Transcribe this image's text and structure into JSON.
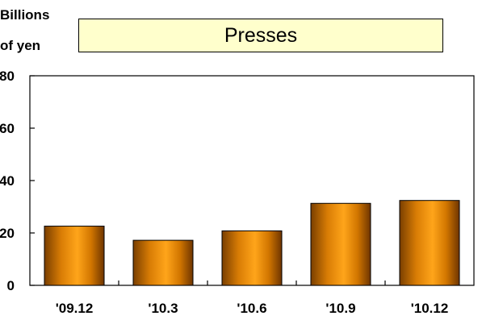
{
  "chart_data": {
    "type": "bar",
    "title": "Presses",
    "ylabel_line1": "Billions",
    "ylabel_line2": "of yen",
    "categories": [
      "'09.12",
      "'10.3",
      "'10.6",
      "'10.9",
      "'10.12"
    ],
    "values": [
      22.6,
      17.2,
      20.8,
      31.3,
      32.4
    ],
    "ylim": [
      0,
      80
    ],
    "yticks": [
      0,
      20,
      40,
      60,
      80
    ],
    "ytick_labels": [
      "0",
      "20",
      "40",
      "60",
      "80"
    ],
    "grid": false,
    "bar_color": "#f59a0a"
  }
}
